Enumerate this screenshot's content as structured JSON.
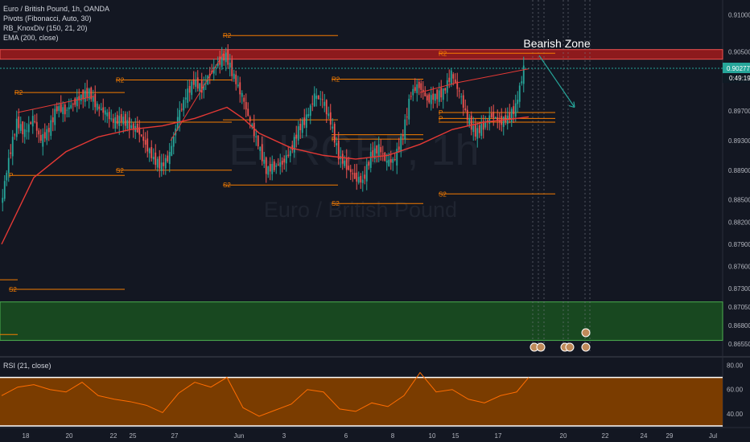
{
  "legend": {
    "symbol": "Euro / British Pound, 1h, OANDA",
    "pivots": "Pivots (Fibonacci, Auto, 30)",
    "knoxdiv": "RB_KnoxDiv (150, 21, 20)",
    "ema": "EMA (200, close)"
  },
  "watermark": {
    "ticker": "EURGBP, 1h",
    "name": "Euro / British Pound"
  },
  "annotation": "Bearish Zone",
  "rsi_label": "RSI (21, close)",
  "price_badges": {
    "last": "0.90277",
    "countdown": "0:49:19"
  },
  "colors": {
    "background": "#131722",
    "bull": "#26a69a",
    "bear": "#ef5350",
    "ema": "#e53935",
    "pivot": "#f57c00",
    "resistance_zone": "#b71c1c",
    "support_zone": "#1b5e20",
    "rsi_fill": "#7a3c00",
    "rsi_line": "#ff6d00",
    "price_line": "#26a69a",
    "arrow": "#26a69a"
  },
  "chart_data": [
    {
      "type": "line",
      "title": "Euro / British Pound, 1h, OANDA",
      "description": "Candlestick price chart with EMA 200, Fibonacci pivots and a bearish target arrow",
      "x_ticks": [
        "18",
        "20",
        "22",
        "25",
        "27",
        "Jun",
        "3",
        "6",
        "8",
        "10",
        "15",
        "17",
        "20",
        "22",
        "24",
        "29",
        "Jul"
      ],
      "y_ticks": [
        "0.91000",
        "0.90500",
        "0.90277",
        "0.89700",
        "0.89300",
        "0.88900",
        "0.88500",
        "0.88200",
        "0.87900",
        "0.87600",
        "0.87300",
        "0.87050",
        "0.86800",
        "0.86550"
      ],
      "ylim": [
        0.864,
        0.912
      ],
      "series": [
        {
          "name": "close",
          "x": [
            0,
            10,
            20,
            30,
            40,
            50,
            60,
            70,
            80,
            90,
            100,
            110,
            120,
            130,
            140,
            150,
            160,
            170,
            180,
            190,
            200,
            210,
            220,
            230,
            240,
            250,
            260,
            270,
            280,
            290,
            300,
            310,
            320,
            330,
            340,
            350,
            360,
            370,
            380,
            390,
            400,
            410,
            420,
            430,
            440,
            450,
            460,
            470,
            480,
            490,
            500,
            510,
            520,
            530,
            540,
            550,
            560,
            570,
            580,
            590,
            600,
            610,
            620,
            630,
            640,
            650
          ],
          "y": [
            0.884,
            0.8905,
            0.8955,
            0.894,
            0.896,
            0.893,
            0.8945,
            0.8975,
            0.897,
            0.898,
            0.899,
            0.8995,
            0.8975,
            0.8968,
            0.8955,
            0.896,
            0.895,
            0.8945,
            0.8925,
            0.8905,
            0.8895,
            0.891,
            0.896,
            0.899,
            0.901,
            0.9,
            0.902,
            0.9035,
            0.9045,
            0.9015,
            0.899,
            0.8955,
            0.8925,
            0.889,
            0.8895,
            0.89,
            0.8915,
            0.8945,
            0.896,
            0.899,
            0.8985,
            0.8955,
            0.891,
            0.8895,
            0.888,
            0.8875,
            0.891,
            0.892,
            0.89,
            0.8905,
            0.894,
            0.8995,
            0.9005,
            0.8985,
            0.899,
            0.8995,
            0.902,
            0.8995,
            0.896,
            0.894,
            0.895,
            0.8965,
            0.8955,
            0.896,
            0.8975,
            0.9027
          ]
        },
        {
          "name": "EMA (200, close)",
          "x": [
            0,
            40,
            80,
            120,
            160,
            200,
            240,
            280,
            300,
            320,
            360,
            400,
            440,
            480,
            520,
            560,
            600,
            640,
            655
          ],
          "y": [
            0.879,
            0.888,
            0.8915,
            0.8935,
            0.8945,
            0.895,
            0.896,
            0.8975,
            0.896,
            0.894,
            0.892,
            0.891,
            0.8905,
            0.891,
            0.8925,
            0.8945,
            0.8955,
            0.896,
            0.8962
          ]
        }
      ],
      "pivot_levels": [
        {
          "label": "R2",
          "value": 0.9072
        },
        {
          "label": "R2",
          "value": 0.9012
        },
        {
          "label": "R2",
          "value": 0.9013
        },
        {
          "label": "R2",
          "value": 0.9048
        },
        {
          "label": "R2",
          "value": 0.8995
        },
        {
          "label": "P",
          "value": 0.8968
        },
        {
          "label": "P",
          "value": 0.8883
        },
        {
          "label": "P",
          "value": 0.8932
        },
        {
          "label": "P",
          "value": 0.896
        },
        {
          "label": "S2",
          "value": 0.889
        },
        {
          "label": "S2",
          "value": 0.887
        },
        {
          "label": "S2",
          "value": 0.8845
        },
        {
          "label": "S2",
          "value": 0.8858
        },
        {
          "label": "S2",
          "value": 0.8729
        }
      ],
      "zones": [
        {
          "name": "resistance",
          "from": 0.904,
          "to": 0.9053
        },
        {
          "name": "support",
          "from": 0.866,
          "to": 0.8712
        }
      ],
      "projection": {
        "label": "Bearish Zone",
        "from": 0.9045,
        "to": 0.8975
      }
    },
    {
      "type": "area",
      "title": "RSI (21, close)",
      "y_ticks": [
        "80.00",
        "60.00",
        "40.00"
      ],
      "ylim": [
        30,
        85
      ],
      "band": [
        30,
        70
      ],
      "series": [
        {
          "name": "RSI",
          "x": [
            0,
            20,
            40,
            60,
            80,
            100,
            120,
            140,
            160,
            180,
            200,
            220,
            240,
            260,
            280,
            300,
            320,
            340,
            360,
            380,
            400,
            420,
            440,
            460,
            480,
            500,
            520,
            540,
            560,
            580,
            600,
            620,
            640,
            655
          ],
          "y": [
            55,
            62,
            64,
            60,
            58,
            66,
            55,
            52,
            50,
            47,
            41,
            57,
            66,
            62,
            70,
            45,
            38,
            43,
            48,
            60,
            58,
            44,
            42,
            49,
            46,
            55,
            74,
            58,
            60,
            52,
            49,
            55,
            58,
            70
          ]
        }
      ]
    }
  ]
}
